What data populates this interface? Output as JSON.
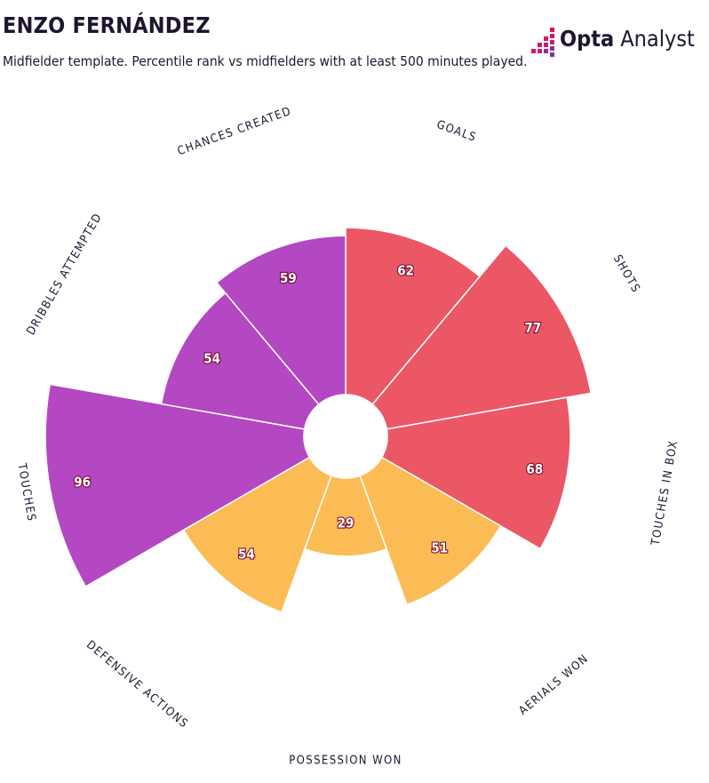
{
  "header": {
    "title": "ENZO FERNÁNDEZ",
    "subtitle": "Midfielder template. Percentile rank vs midfielders with at least 500 minutes played."
  },
  "logo": {
    "brand_bold": "Opta",
    "brand_light": " Analyst"
  },
  "colors": {
    "attacking": "#ec5766",
    "possession": "#b447c2",
    "defending": "#fbbc55",
    "logo_pink": "#e0115f",
    "logo_purple": "#7b2fa8"
  },
  "chart_data": {
    "type": "polar-bar",
    "scale": [
      0,
      100
    ],
    "categories": [
      "GOALS",
      "SHOTS",
      "TOUCHES IN BOX",
      "AERIALS WON",
      "POSSESSION WON",
      "DEFENSIVE ACTIONS",
      "TOUCHES",
      "DRIBBLES ATTEMPTED",
      "CHANCES CREATED"
    ],
    "values": [
      62,
      77,
      68,
      51,
      29,
      54,
      96,
      54,
      59
    ],
    "groups": [
      "attacking",
      "attacking",
      "attacking",
      "defending",
      "defending",
      "defending",
      "possession",
      "possession",
      "possession"
    ]
  }
}
